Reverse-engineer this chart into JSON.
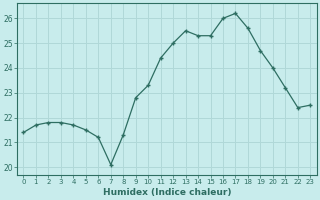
{
  "x": [
    0,
    1,
    2,
    3,
    4,
    5,
    6,
    7,
    8,
    9,
    10,
    11,
    12,
    13,
    14,
    15,
    16,
    17,
    18,
    19,
    20,
    21,
    22,
    23
  ],
  "y": [
    21.4,
    21.7,
    21.8,
    21.8,
    21.7,
    21.5,
    21.2,
    20.1,
    21.3,
    22.8,
    23.3,
    24.4,
    25.0,
    25.5,
    25.3,
    25.3,
    26.0,
    26.2,
    25.6,
    24.7,
    24.0,
    23.2,
    22.4,
    22.5
  ],
  "xlabel": "Humidex (Indice chaleur)",
  "ylim": [
    19.7,
    26.6
  ],
  "yticks": [
    20,
    21,
    22,
    23,
    24,
    25,
    26
  ],
  "xticks": [
    0,
    1,
    2,
    3,
    4,
    5,
    6,
    7,
    8,
    9,
    10,
    11,
    12,
    13,
    14,
    15,
    16,
    17,
    18,
    19,
    20,
    21,
    22,
    23
  ],
  "line_color": "#2e6e62",
  "marker": "+",
  "bg_color": "#c8ecec",
  "grid_color": "#b0d8d8",
  "spine_color": "#2e6e62",
  "tick_color": "#2e6e62",
  "label_color": "#2e6e62"
}
